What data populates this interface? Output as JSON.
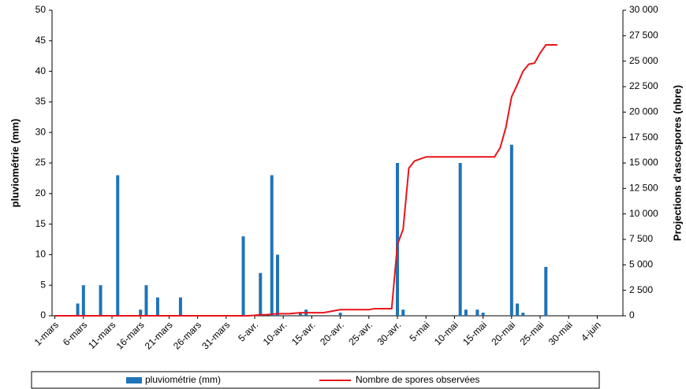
{
  "chart_data": {
    "type": "bar_line",
    "ylabel": "pluviométrie (mm)",
    "y2label": "Projections d'ascospores (nbre)",
    "categories": [
      "1-mars",
      null,
      null,
      null,
      null,
      "6-mars",
      null,
      null,
      null,
      null,
      "11-mars",
      null,
      null,
      null,
      null,
      "16-mars",
      null,
      null,
      null,
      null,
      "21-mars",
      null,
      null,
      null,
      null,
      "26-mars",
      null,
      null,
      null,
      null,
      "31-mars",
      null,
      null,
      null,
      null,
      "5-avr.",
      null,
      null,
      null,
      null,
      "10-avr.",
      null,
      null,
      null,
      null,
      "15-avr.",
      null,
      null,
      null,
      null,
      "20-avr.",
      null,
      null,
      null,
      null,
      "25-avr.",
      null,
      null,
      null,
      null,
      "30-avr.",
      null,
      null,
      null,
      null,
      "5-mai",
      null,
      null,
      null,
      null,
      "10-mai",
      null,
      null,
      null,
      null,
      "15-mai",
      null,
      null,
      null,
      null,
      "20-mai",
      null,
      null,
      null,
      null,
      "25-mai",
      null,
      null,
      null,
      null,
      "30-mai",
      null,
      null,
      null,
      null,
      "4-juin",
      null,
      null,
      null,
      null
    ],
    "series": [
      {
        "name": "pluviométrie (mm)",
        "type": "bar",
        "color": "#1f73b8",
        "values": [
          0,
          0,
          0,
          0,
          2,
          5,
          0,
          0,
          5,
          0,
          0,
          23,
          0,
          0,
          0,
          1,
          5,
          0,
          3,
          0,
          0,
          0,
          3,
          0,
          0,
          0,
          0,
          0,
          0,
          0,
          0,
          0,
          0,
          13,
          0,
          0,
          7,
          0,
          23,
          10,
          0,
          0,
          0,
          0.5,
          1,
          0,
          0,
          0,
          0,
          0,
          0.5,
          0,
          0,
          0,
          0,
          0,
          0,
          0,
          0,
          0,
          25,
          1,
          0,
          0,
          0,
          0,
          0,
          0,
          0,
          0,
          0,
          25,
          1,
          0,
          1,
          0.5,
          0,
          0,
          0,
          0,
          28,
          2,
          0.5,
          0,
          0,
          0,
          8,
          0,
          0,
          null,
          null,
          null,
          null,
          null,
          null,
          null,
          null,
          null,
          null,
          null
        ]
      },
      {
        "name": "Nombre de spores observées",
        "type": "line",
        "axis": "y2",
        "color": "#e8141b",
        "values": [
          0,
          0,
          0,
          0,
          0,
          0,
          0,
          0,
          0,
          0,
          0,
          0,
          0,
          0,
          0,
          0,
          0,
          0,
          0,
          0,
          0,
          0,
          0,
          0,
          0,
          0,
          0,
          0,
          0,
          0,
          0,
          0,
          0,
          0,
          0,
          50,
          100,
          100,
          150,
          200,
          200,
          200,
          250,
          300,
          300,
          300,
          300,
          300,
          400,
          500,
          600,
          600,
          600,
          600,
          600,
          600,
          700,
          700,
          700,
          700,
          7000,
          8500,
          14500,
          15200,
          15400,
          15600,
          15600,
          15600,
          15600,
          15600,
          15600,
          15600,
          15600,
          15600,
          15600,
          15600,
          15600,
          15600,
          16500,
          18500,
          21500,
          22700,
          24000,
          24700,
          24800,
          25800,
          26600,
          26600,
          26600,
          null,
          null,
          null,
          null,
          null,
          null,
          null,
          null,
          null,
          null,
          null
        ]
      }
    ],
    "ylim": [
      0,
      50
    ],
    "yticks": [
      0,
      5,
      10,
      15,
      20,
      25,
      30,
      35,
      40,
      45,
      50
    ],
    "y2lim": [
      0,
      30000
    ],
    "y2ticks": [
      0,
      {
        "value": 2500,
        "label": "2 500"
      },
      {
        "value": 5000,
        "label": "5 000"
      },
      {
        "value": 7500,
        "label": "7 500"
      },
      {
        "value": 10000,
        "label": "10 000"
      },
      {
        "value": 12500,
        "label": "12 500"
      },
      {
        "value": 15000,
        "label": "15 000"
      },
      {
        "value": 17500,
        "label": "17 500"
      },
      {
        "value": 20000,
        "label": "20 000"
      },
      {
        "value": 22500,
        "label": "22 500"
      },
      {
        "value": 25000,
        "label": "25 000"
      },
      {
        "value": 27500,
        "label": "27 500"
      },
      {
        "value": 30000,
        "label": "30 000"
      }
    ]
  }
}
